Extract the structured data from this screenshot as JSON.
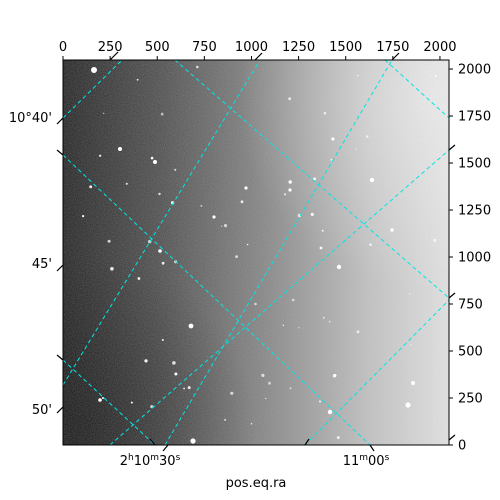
{
  "chart_data": {
    "type": "image",
    "xlabel": "pos.eq.ra",
    "pixel_x_axis": {
      "range": [
        0,
        2048
      ],
      "ticks": [
        "0",
        "250",
        "500",
        "750",
        "1000",
        "1250",
        "1500",
        "1750",
        "2000"
      ]
    },
    "pixel_y_axis": {
      "range": [
        0,
        2048
      ],
      "ticks": [
        "0",
        "250",
        "500",
        "750",
        "1000",
        "1250",
        "1500",
        "1750",
        "2000"
      ]
    },
    "ra_ticks": [
      {
        "h": "2",
        "m": "10",
        "s": "30"
      },
      {
        "m": "11",
        "s": "00"
      }
    ],
    "dec_ticks": [
      "10°40'",
      "45'",
      "50'"
    ],
    "grid": true,
    "grid_color": "#00e5e5",
    "colormap": "gray",
    "image_brightness_trend": "dark at left, brighter toward right"
  }
}
